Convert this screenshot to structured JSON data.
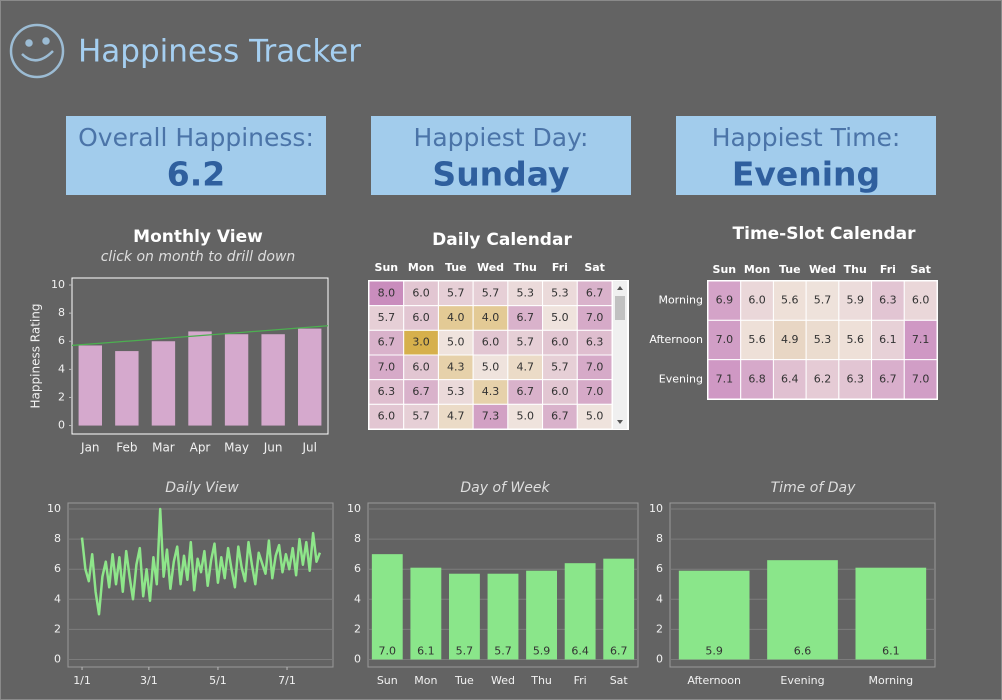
{
  "header": {
    "title": "Happiness Tracker"
  },
  "kpis": [
    {
      "label": "Overall Happiness:",
      "value": 6.2
    },
    {
      "label": "Happiest Day:",
      "value": "Sunday"
    },
    {
      "label": "Happiest Time:",
      "value": "Evening"
    }
  ],
  "chart_data": [
    {
      "type": "bar",
      "title": "Monthly View",
      "subtitle": "click on month to drill down",
      "y_label": "Happiness Rating",
      "categories": [
        "Jan",
        "Feb",
        "Mar",
        "Apr",
        "May",
        "Jun",
        "Jul"
      ],
      "values": [
        5.7,
        5.3,
        6.0,
        6.7,
        6.5,
        6.5,
        6.9
      ],
      "color": "#d5a9cd",
      "trend": {
        "start": 5.7,
        "end": 7.1,
        "color": "#4caf50"
      },
      "ylim": [
        -0.6,
        10.5
      ],
      "yticks": [
        0,
        2,
        4,
        6,
        8,
        10
      ],
      "grid": false
    },
    {
      "type": "heatmap",
      "title": "Daily Calendar",
      "categories": [
        "Sun",
        "Mon",
        "Tue",
        "Wed",
        "Thu",
        "Fri",
        "Sat"
      ],
      "colors": [
        "#d6b04c",
        "#efe3dd",
        "#c98dbd"
      ],
      "values": [
        [
          8.0,
          6.0,
          5.7,
          5.7,
          5.3,
          5.3,
          6.7
        ],
        [
          5.7,
          6.0,
          4.0,
          4.0,
          6.7,
          5.0,
          7.0
        ],
        [
          6.7,
          3.0,
          5.0,
          6.0,
          5.7,
          6.0,
          6.3
        ],
        [
          7.0,
          6.0,
          4.3,
          5.0,
          4.7,
          5.7,
          7.0
        ],
        [
          6.3,
          6.7,
          5.3,
          4.3,
          6.7,
          6.0,
          7.0
        ],
        [
          6.0,
          5.7,
          4.7,
          7.3,
          5.0,
          6.7,
          5.0
        ]
      ],
      "value_labels": [
        [
          "8.0",
          "6.0",
          "5.7",
          "5.7",
          "5.3",
          "5.3",
          "6.7"
        ],
        [
          "5.7",
          "6.0",
          "4.0",
          "4.0",
          "6.7",
          "5.0",
          "7.0"
        ],
        [
          "6.7",
          "3.0",
          "5.0",
          "6.0",
          "5.7",
          "6.0",
          "6.3"
        ],
        [
          "7.0",
          "6.0",
          "4.3",
          "5.0",
          "4.7",
          "5.7",
          "7.0"
        ],
        [
          "6.3",
          "6.7",
          "5.3",
          "4.3",
          "6.7",
          "6.0",
          "7.0"
        ],
        [
          "6.0",
          "5.7",
          "4.7",
          "7.3",
          "5.0",
          "6.7",
          "5.0"
        ]
      ]
    },
    {
      "type": "heatmap",
      "title": "Time-Slot Calendar",
      "categories": [
        "Sun",
        "Mon",
        "Tue",
        "Wed",
        "Thu",
        "Fri",
        "Sat"
      ],
      "row_labels": [
        "Morning",
        "Afternoon",
        "Evening"
      ],
      "colors": [
        "#e8d6c4",
        "#efe3dd",
        "#cf98c4"
      ],
      "values": [
        [
          6.9,
          6.0,
          5.6,
          5.7,
          5.9,
          6.3,
          6.0
        ],
        [
          7.0,
          5.6,
          4.9,
          5.3,
          5.6,
          6.1,
          7.1
        ],
        [
          7.1,
          6.8,
          6.4,
          6.2,
          6.3,
          6.7,
          7.0
        ]
      ],
      "value_labels": [
        [
          "6.9",
          "6.0",
          "5.6",
          "5.7",
          "5.9",
          "6.3",
          "6.0"
        ],
        [
          "7.0",
          "5.6",
          "4.9",
          "5.3",
          "5.6",
          "6.1",
          "7.1"
        ],
        [
          "7.1",
          "6.8",
          "6.4",
          "6.2",
          "6.3",
          "6.7",
          "7.0"
        ]
      ]
    },
    {
      "type": "line",
      "title": "Daily View",
      "color": "#8ee68a",
      "x": [
        0,
        3,
        6,
        9,
        12,
        15,
        18,
        21,
        24,
        27,
        30,
        33,
        36,
        39,
        42,
        45,
        48,
        51,
        54,
        57,
        60,
        63,
        66,
        69,
        72,
        75,
        78,
        81,
        84,
        87,
        90,
        93,
        96,
        99,
        102,
        105,
        108,
        111,
        114,
        117,
        120,
        123,
        126,
        129,
        132,
        135,
        138,
        141,
        144,
        147,
        150,
        153,
        156,
        159,
        162,
        165,
        168,
        171,
        174,
        177,
        180,
        183,
        186,
        189,
        192,
        195,
        198,
        201,
        204,
        207,
        210
      ],
      "values": [
        8.1,
        6.0,
        5.2,
        7.0,
        4.5,
        3.0,
        5.5,
        6.5,
        4.8,
        7.0,
        5.0,
        6.8,
        4.5,
        7.2,
        5.5,
        4.0,
        6.3,
        7.4,
        4.2,
        6.0,
        3.9,
        6.8,
        5.0,
        10.0,
        5.5,
        7.3,
        4.7,
        6.5,
        7.5,
        5.0,
        6.9,
        5.3,
        7.8,
        4.6,
        6.7,
        5.8,
        7.2,
        4.9,
        6.6,
        7.7,
        5.1,
        6.8,
        5.4,
        7.4,
        6.0,
        4.8,
        7.5,
        6.1,
        5.2,
        7.8,
        6.3,
        5.0,
        7.1,
        6.4,
        5.7,
        7.9,
        5.4,
        6.9,
        7.6,
        5.8,
        7.0,
        6.0,
        7.4,
        5.6,
        8.0,
        6.3,
        7.8,
        5.9,
        8.4,
        6.5,
        7.1
      ],
      "xlim": [
        -12.4,
        221.6
      ],
      "xticks": [
        {
          "value": 0,
          "label": "1/1"
        },
        {
          "value": 59,
          "label": "3/1"
        },
        {
          "value": 120,
          "label": "5/1"
        },
        {
          "value": 181,
          "label": "7/1"
        }
      ],
      "ylim": [
        -0.5,
        10.4
      ],
      "yticks": [
        0,
        2,
        4,
        6,
        8,
        10
      ],
      "grid": true
    },
    {
      "type": "bar",
      "title": "Day of Week",
      "color": "#8ae68a",
      "categories": [
        "Sun",
        "Mon",
        "Tue",
        "Wed",
        "Thu",
        "Fri",
        "Sat"
      ],
      "values": [
        7.0,
        6.1,
        5.7,
        5.7,
        5.9,
        6.4,
        6.7
      ],
      "value_labels": [
        "7.0",
        "6.1",
        "5.7",
        "5.7",
        "5.9",
        "6.4",
        "6.7"
      ],
      "ylim": [
        -0.5,
        10.4
      ],
      "yticks": [
        0,
        2,
        4,
        6,
        8,
        10
      ],
      "grid": true
    },
    {
      "type": "bar",
      "title": "Time of Day",
      "color": "#8ae68a",
      "categories": [
        "Afternoon",
        "Evening",
        "Morning"
      ],
      "values": [
        5.9,
        6.6,
        6.1
      ],
      "value_labels": [
        "5.9",
        "6.6",
        "6.1"
      ],
      "ylim": [
        -0.5,
        10.4
      ],
      "yticks": [
        0,
        2,
        4,
        6,
        8,
        10
      ],
      "grid": true
    }
  ]
}
